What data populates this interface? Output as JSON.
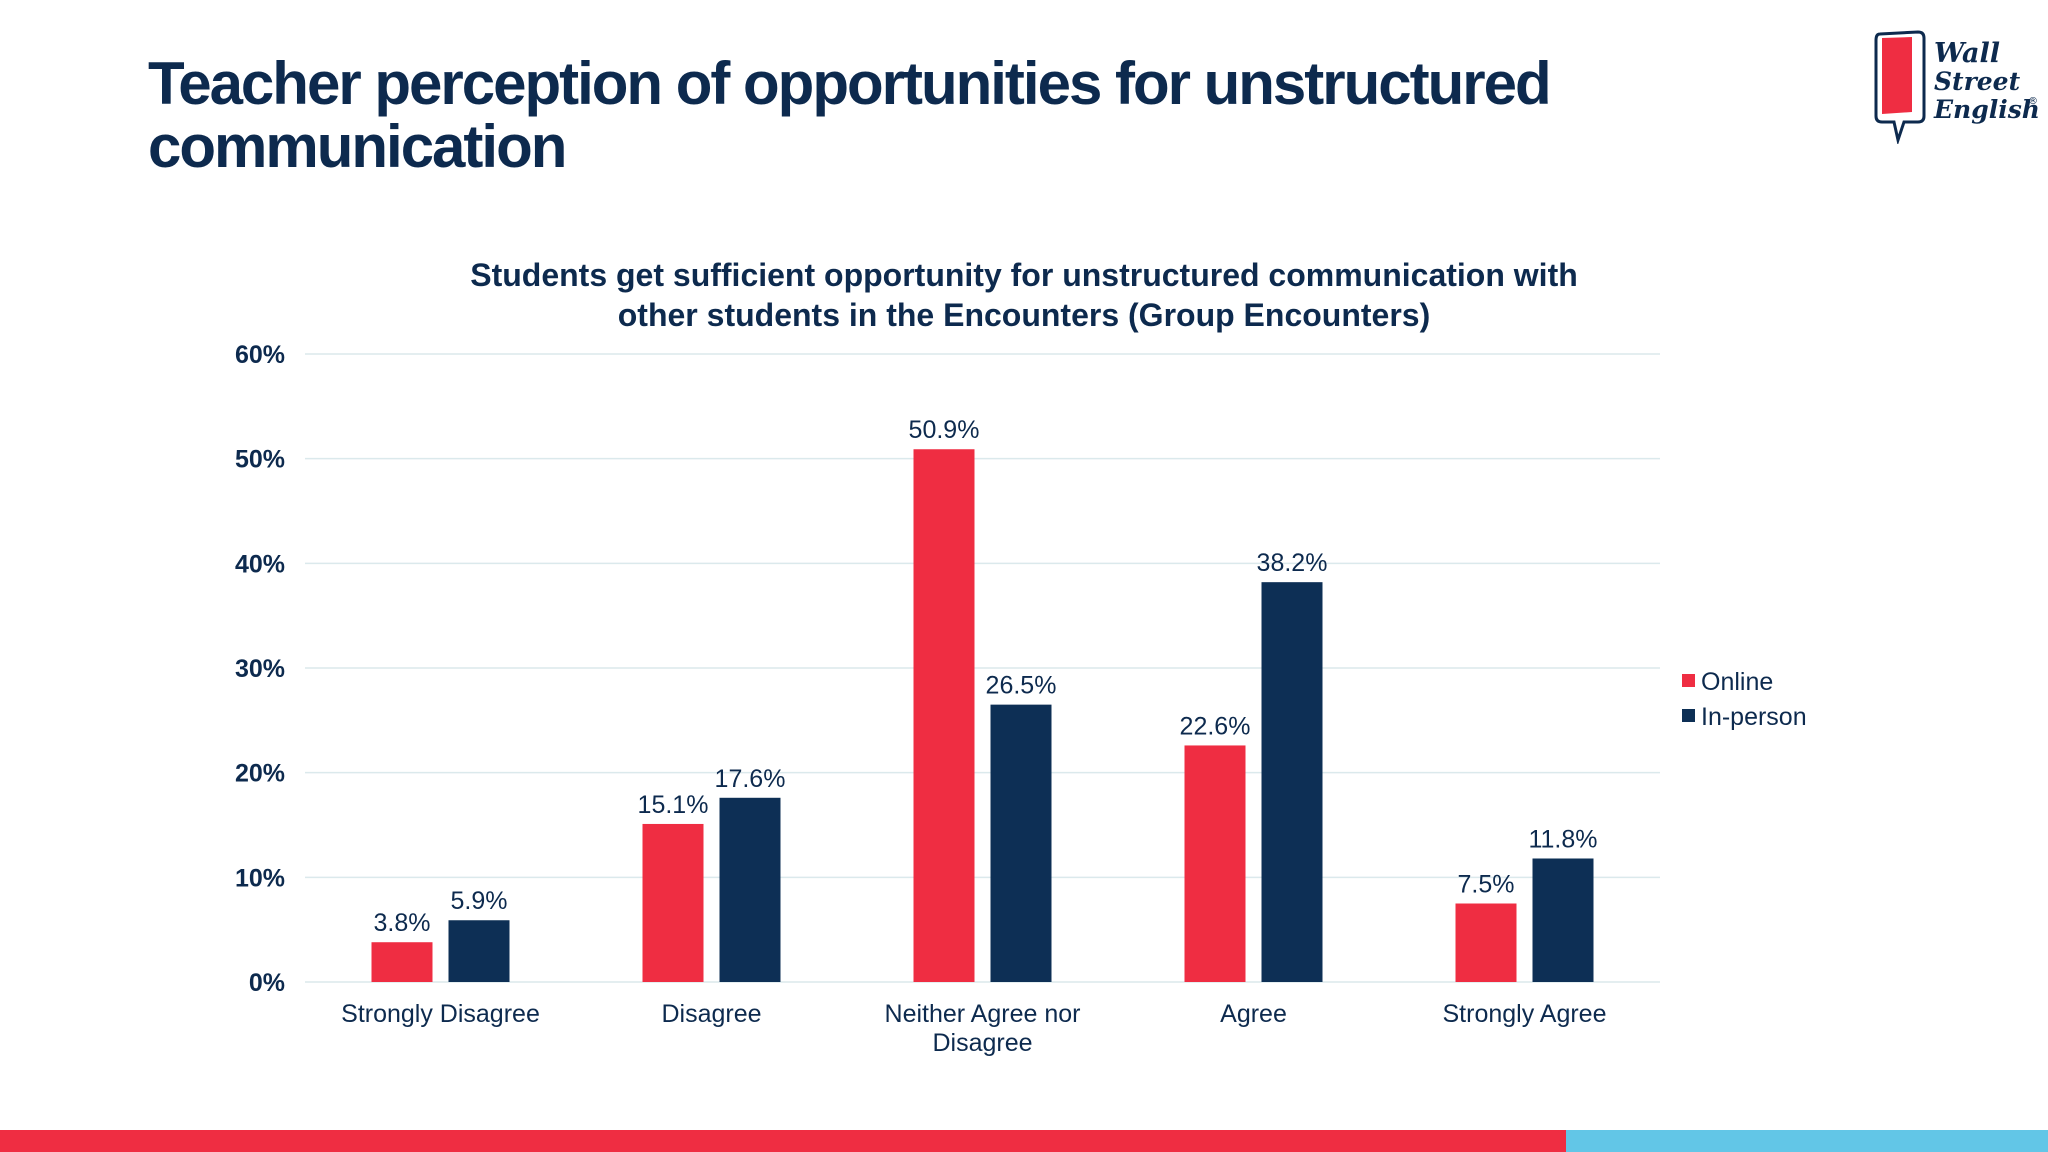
{
  "slide": {
    "title": "Teacher perception of opportunities for unstructured communication"
  },
  "logo": {
    "line1": "Wall",
    "line2": "Street",
    "line3": "English",
    "mark": "®"
  },
  "colors": {
    "online": "#ef2d42",
    "in_person": "#0d2f55",
    "title": "#0d2a4e",
    "grid": "#dbe9ec",
    "bottom_red": "#ef2d42",
    "bottom_blue": "#62c6e7"
  },
  "chart_data": {
    "type": "bar",
    "title_lines": [
      "Students get sufficient opportunity for unstructured communication with",
      "other students in the Encounters (Group Encounters)"
    ],
    "categories": [
      [
        "Strongly Disagree"
      ],
      [
        "Disagree"
      ],
      [
        "Neither Agree nor",
        "Disagree"
      ],
      [
        "Agree"
      ],
      [
        "Strongly Agree"
      ]
    ],
    "series": [
      {
        "name": "Online",
        "values": [
          3.8,
          15.1,
          50.9,
          22.6,
          7.5
        ],
        "labels": [
          "3.8%",
          "15.1%",
          "50.9%",
          "22.6%",
          "7.5%"
        ]
      },
      {
        "name": "In-person",
        "values": [
          5.9,
          17.6,
          26.5,
          38.2,
          11.8
        ],
        "labels": [
          "5.9%",
          "17.6%",
          "26.5%",
          "38.2%",
          "11.8%"
        ]
      }
    ],
    "ylim": [
      0,
      60
    ],
    "yticks": [
      0,
      10,
      20,
      30,
      40,
      50,
      60
    ],
    "ytick_labels": [
      "0%",
      "10%",
      "20%",
      "30%",
      "40%",
      "50%",
      "60%"
    ],
    "grid": true,
    "legend_position": "right"
  }
}
